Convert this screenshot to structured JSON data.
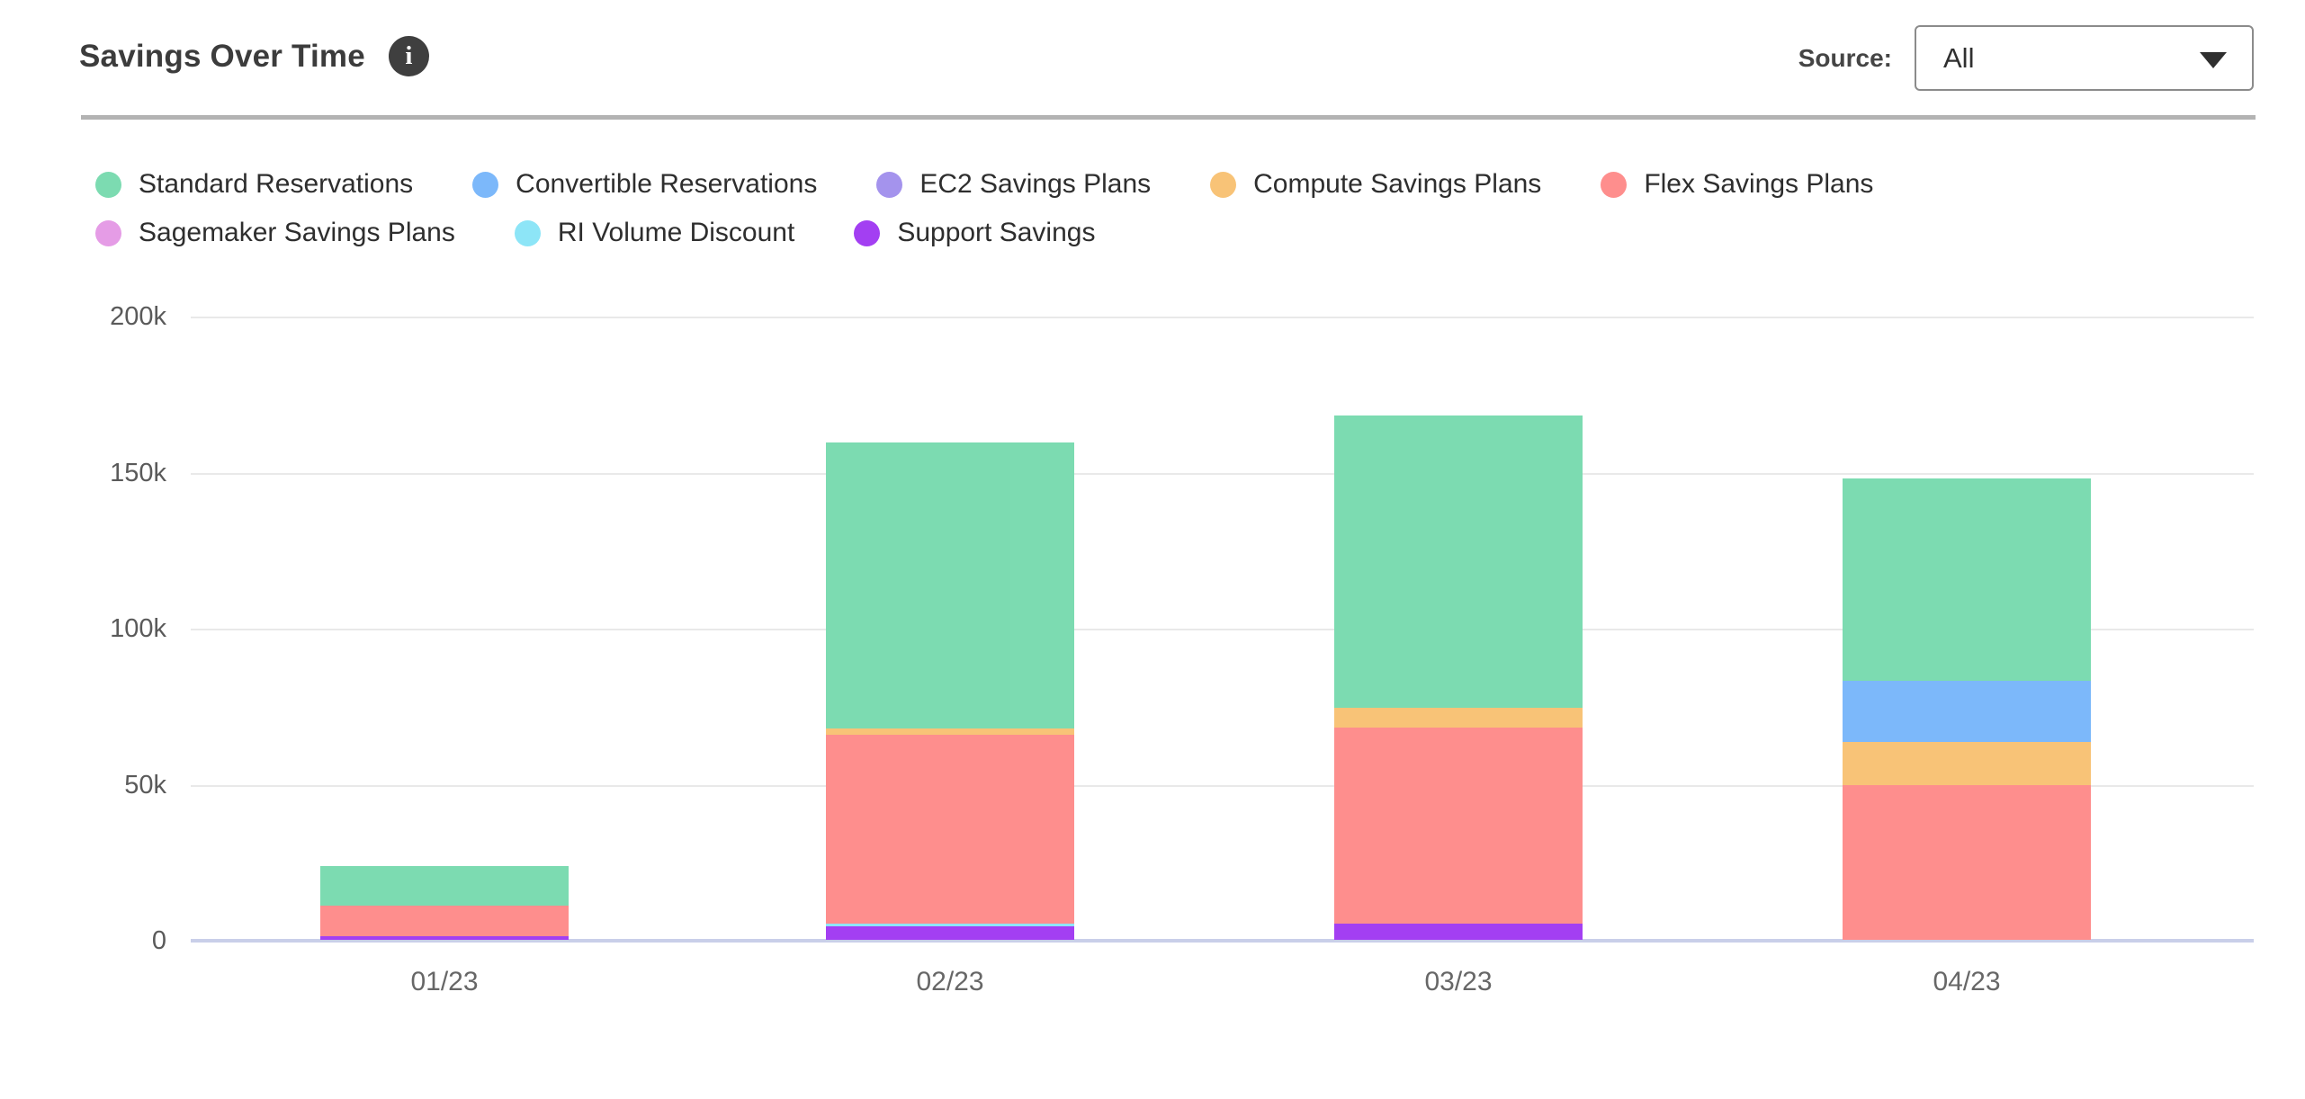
{
  "header": {
    "title": "Savings Over Time",
    "info_icon": "info-circle",
    "source_label": "Source:",
    "source_value": "All"
  },
  "chart_data": {
    "type": "bar",
    "stacked": true,
    "title": "Savings Over Time",
    "categories": [
      "01/23",
      "02/23",
      "03/23",
      "04/23"
    ],
    "series": [
      {
        "name": "Standard Reservations",
        "color": "#7cdbb1",
        "values": [
          12600,
          91800,
          93600,
          64800
        ]
      },
      {
        "name": "Convertible Reservations",
        "color": "#7cb8fa",
        "values": [
          0,
          0,
          0,
          19500
        ]
      },
      {
        "name": "EC2 Savings Plans",
        "color": "#a493ed",
        "values": [
          0,
          0,
          0,
          0
        ]
      },
      {
        "name": "Compute Savings Plans",
        "color": "#f8c377",
        "values": [
          0,
          1800,
          6400,
          13800
        ]
      },
      {
        "name": "Flex Savings Plans",
        "color": "#fe8e8d",
        "values": [
          9700,
          60600,
          62600,
          49700
        ]
      },
      {
        "name": "Sagemaker Savings Plans",
        "color": "#e59ce6",
        "values": [
          0,
          0,
          0,
          0
        ]
      },
      {
        "name": "RI Volume Discount",
        "color": "#8de5f7",
        "values": [
          0,
          900,
          0,
          0
        ]
      },
      {
        "name": "Support Savings",
        "color": "#a33ff2",
        "values": [
          1200,
          4300,
          5300,
          0
        ]
      }
    ],
    "stack_order_bottom_to_top": [
      "Support Savings",
      "RI Volume Discount",
      "Flex Savings Plans",
      "Compute Savings Plans",
      "EC2 Savings Plans",
      "Sagemaker Savings Plans",
      "Convertible Reservations",
      "Standard Reservations"
    ],
    "totals": [
      23500,
      159400,
      167900,
      147800
    ],
    "xlabel": "",
    "ylabel": "",
    "ylim": [
      0,
      200000
    ],
    "ytick_values": [
      0,
      50000,
      100000,
      150000,
      200000
    ],
    "ytick_labels": [
      "0",
      "50k",
      "100k",
      "150k",
      "200k"
    ],
    "grid": "horizontal",
    "legend_position": "top"
  }
}
